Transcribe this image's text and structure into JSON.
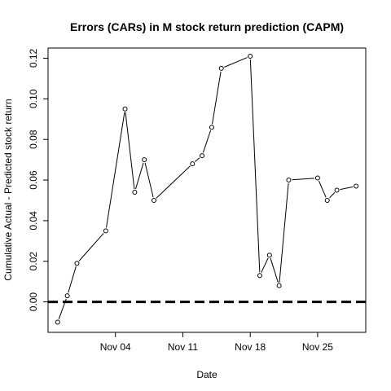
{
  "chart_data": {
    "type": "line",
    "title": "Errors (CARs) in M stock return prediction (CAPM)",
    "xlabel": "Date",
    "ylabel": "Cumulative Actual - Predicted stock return",
    "x_tick_labels": [
      "Nov 04",
      "Nov 11",
      "Nov 18",
      "Nov 25"
    ],
    "x_tick_dates": [
      "2019-11-04",
      "2019-11-11",
      "2019-11-18",
      "2019-11-25"
    ],
    "y_ticks": [
      0.0,
      0.02,
      0.04,
      0.06,
      0.08,
      0.1,
      0.12
    ],
    "y_tick_labels": [
      "0.00",
      "0.02",
      "0.04",
      "0.06",
      "0.08",
      "0.10",
      "0.12"
    ],
    "xlim": [
      "2019-10-28",
      "2019-11-30"
    ],
    "ylim": [
      -0.015,
      0.125
    ],
    "grid": false,
    "reference_line": {
      "y": 0,
      "style": "dashed"
    },
    "series": [
      {
        "points": [
          {
            "date": "2019-10-29",
            "value": -0.01
          },
          {
            "date": "2019-10-30",
            "value": 0.003
          },
          {
            "date": "2019-10-31",
            "value": 0.019
          },
          {
            "date": "2019-11-03",
            "value": 0.035
          },
          {
            "date": "2019-11-05",
            "value": 0.095
          },
          {
            "date": "2019-11-06",
            "value": 0.054
          },
          {
            "date": "2019-11-07",
            "value": 0.07
          },
          {
            "date": "2019-11-08",
            "value": 0.05
          },
          {
            "date": "2019-11-12",
            "value": 0.068
          },
          {
            "date": "2019-11-13",
            "value": 0.072
          },
          {
            "date": "2019-11-14",
            "value": 0.086
          },
          {
            "date": "2019-11-15",
            "value": 0.115
          },
          {
            "date": "2019-11-18",
            "value": 0.121
          },
          {
            "date": "2019-11-19",
            "value": 0.013
          },
          {
            "date": "2019-11-20",
            "value": 0.023
          },
          {
            "date": "2019-11-21",
            "value": 0.008
          },
          {
            "date": "2019-11-22",
            "value": 0.06
          },
          {
            "date": "2019-11-25",
            "value": 0.061
          },
          {
            "date": "2019-11-26",
            "value": 0.05
          },
          {
            "date": "2019-11-27",
            "value": 0.055
          },
          {
            "date": "2019-11-29",
            "value": 0.057
          }
        ]
      }
    ]
  }
}
